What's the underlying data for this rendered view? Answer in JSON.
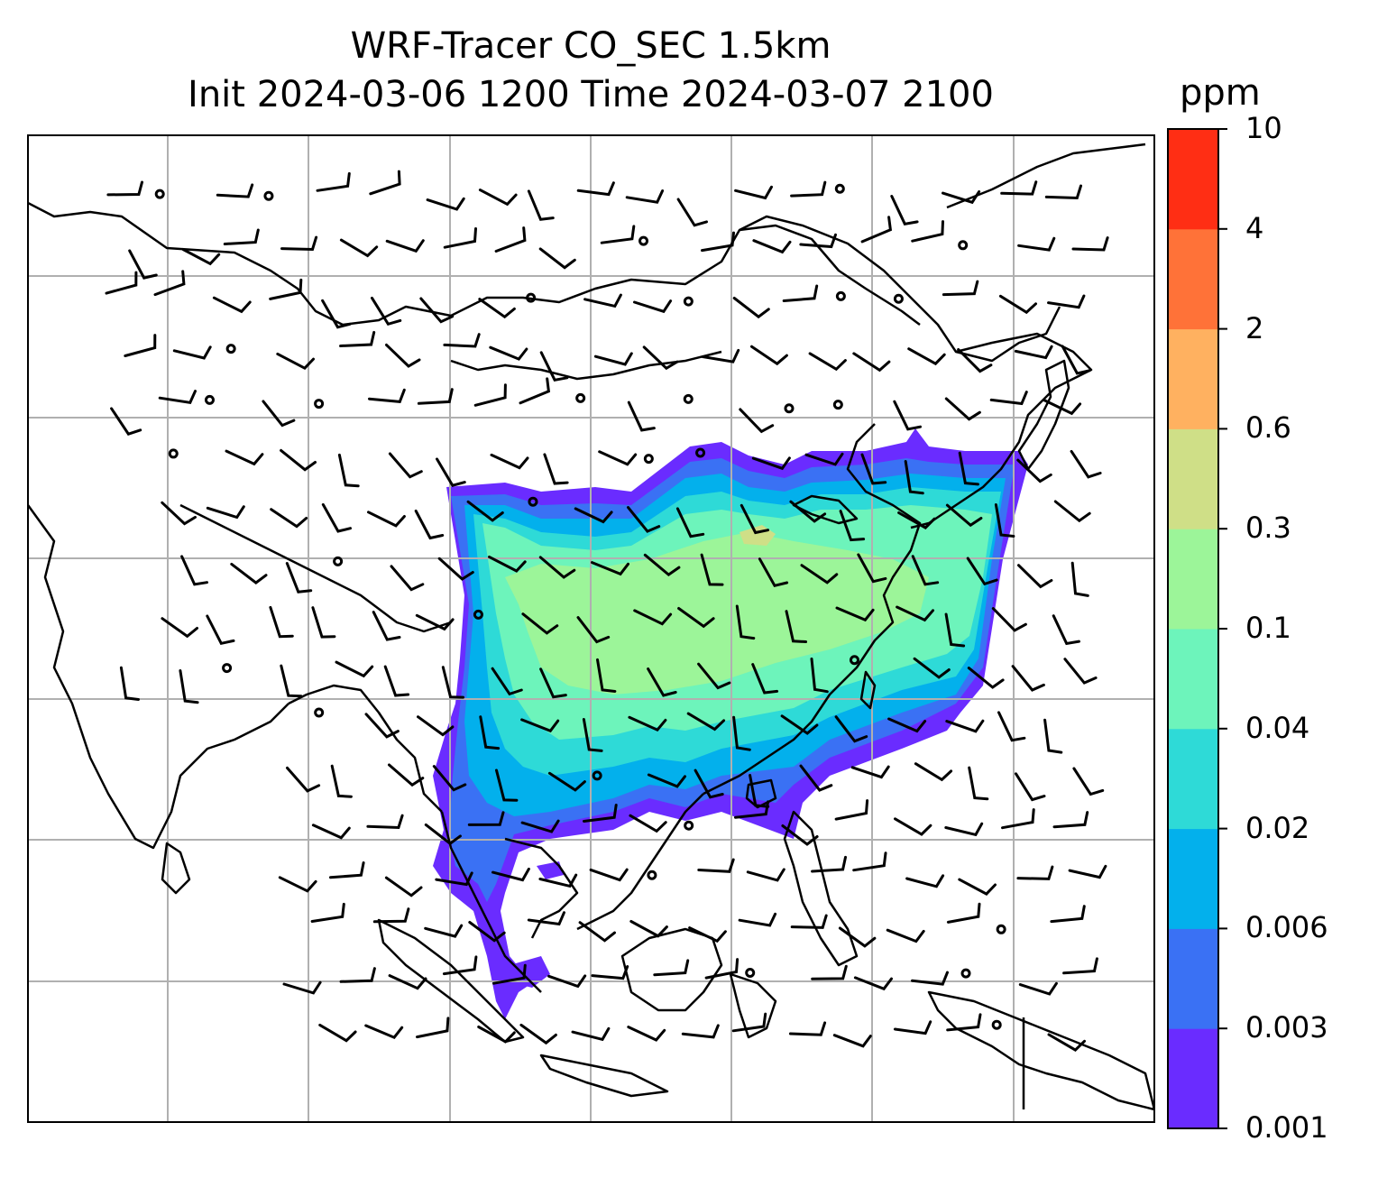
{
  "title": {
    "line1": "WRF-Tracer CO_SEC 1.5km",
    "line2": "Init 2024-03-06 1200 Time 2024-03-07 2100"
  },
  "colorbar": {
    "unit": "ppm",
    "levels": [
      "0.001",
      "0.003",
      "0.006",
      "0.02",
      "0.04",
      "0.1",
      "0.3",
      "0.6",
      "2",
      "4",
      "10"
    ],
    "colors": [
      "#6a2cff",
      "#3a71f4",
      "#03b0ec",
      "#2edad7",
      "#6df4bb",
      "#9cf599",
      "#cfdf87",
      "#ffb160",
      "#ff7238",
      "#ff2e14"
    ]
  },
  "map": {
    "gridlines": true,
    "coastline_color": "#000000",
    "grid_color": "#b0b0b0",
    "wind_barb_color": "#000000"
  }
}
